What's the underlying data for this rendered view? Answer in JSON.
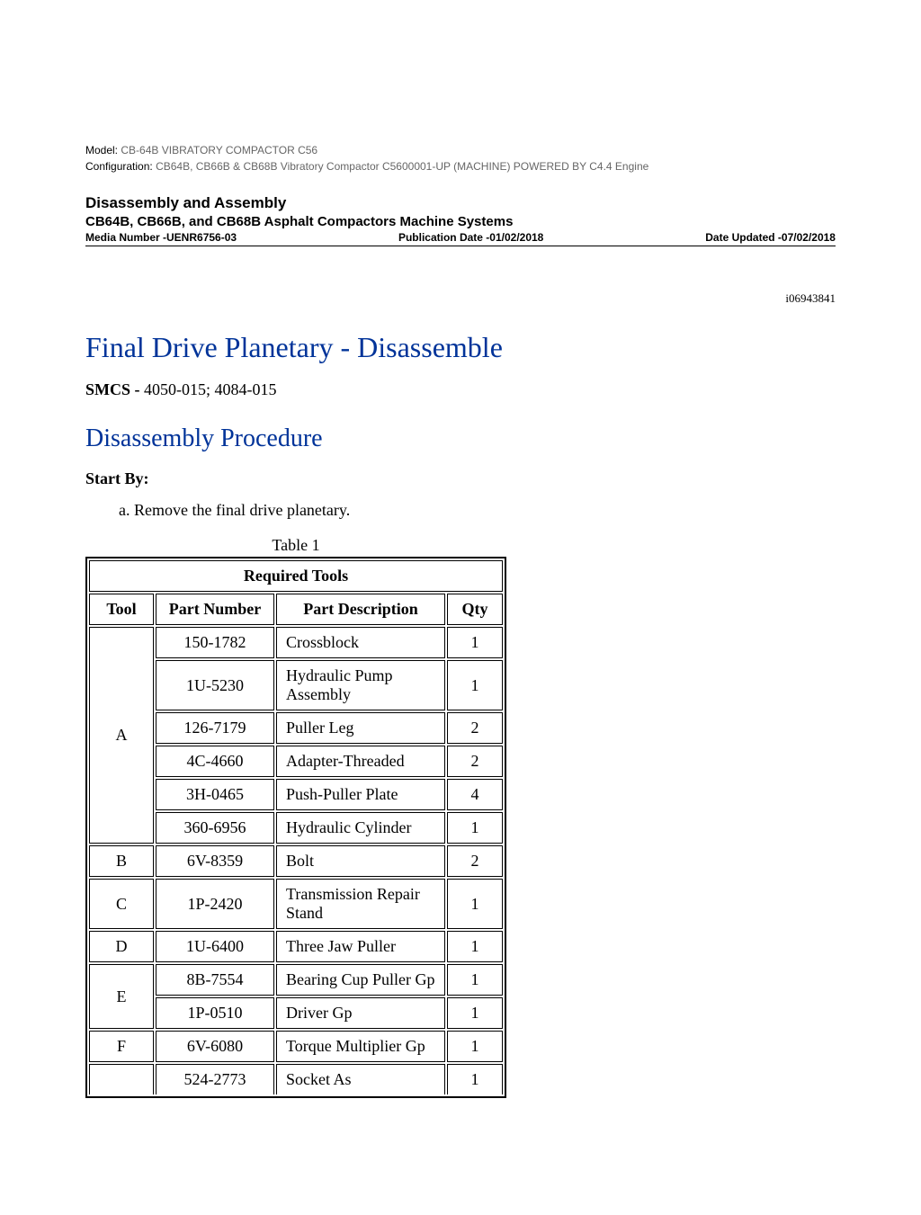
{
  "meta": {
    "model_label": "Model:",
    "model_value": "CB-64B VIBRATORY COMPACTOR C56",
    "config_label": "Configuration:",
    "config_value": "CB64B, CB66B & CB68B Vibratory Compactor C5600001-UP (MACHINE) POWERED BY C4.4 Engine"
  },
  "header": {
    "section_title": "Disassembly and Assembly",
    "section_subtitle": "CB64B, CB66B, and CB68B Asphalt Compactors Machine Systems",
    "media_number": "Media Number -UENR6756-03",
    "pub_date": "Publication Date -01/02/2018",
    "date_updated": "Date Updated -07/02/2018"
  },
  "doc_id": "i06943841",
  "title_main": "Final Drive Planetary - Disassemble",
  "smcs": {
    "label": "SMCS - ",
    "value": "4050-015; 4084-015"
  },
  "title_sub": "Disassembly Procedure",
  "start_by": {
    "label": "Start By:",
    "item": "Remove the final drive planetary."
  },
  "table": {
    "caption": "Table 1",
    "header_full": "Required Tools",
    "columns": [
      "Tool",
      "Part Number",
      "Part Description",
      "Qty"
    ],
    "rows": [
      {
        "tool": "A",
        "rowspan": 6,
        "pn": "150-1782",
        "desc": "Crossblock",
        "qty": "1"
      },
      {
        "tool": "",
        "rowspan": 0,
        "pn": "1U-5230",
        "desc": "Hydraulic Pump Assembly",
        "qty": "1"
      },
      {
        "tool": "",
        "rowspan": 0,
        "pn": "126-7179",
        "desc": "Puller Leg",
        "qty": "2"
      },
      {
        "tool": "",
        "rowspan": 0,
        "pn": "4C-4660",
        "desc": "Adapter-Threaded",
        "qty": "2"
      },
      {
        "tool": "",
        "rowspan": 0,
        "pn": "3H-0465",
        "desc": "Push-Puller Plate",
        "qty": "4"
      },
      {
        "tool": "",
        "rowspan": 0,
        "pn": "360-6956",
        "desc": "Hydraulic Cylinder",
        "qty": "1"
      },
      {
        "tool": "B",
        "rowspan": 1,
        "pn": "6V-8359",
        "desc": "Bolt",
        "qty": "2"
      },
      {
        "tool": "C",
        "rowspan": 1,
        "pn": "1P-2420",
        "desc": "Transmission Repair Stand",
        "qty": "1"
      },
      {
        "tool": "D",
        "rowspan": 1,
        "pn": "1U-6400",
        "desc": "Three Jaw Puller",
        "qty": "1"
      },
      {
        "tool": "E",
        "rowspan": 2,
        "pn": "8B-7554",
        "desc": "Bearing Cup Puller Gp",
        "qty": "1"
      },
      {
        "tool": "",
        "rowspan": 0,
        "pn": "1P-0510",
        "desc": "Driver Gp",
        "qty": "1"
      },
      {
        "tool": "F",
        "rowspan": 1,
        "pn": "6V-6080",
        "desc": "Torque Multiplier Gp",
        "qty": "1"
      },
      {
        "tool": "",
        "rowspan": 1,
        "pn": "524-2773",
        "desc": "Socket As",
        "qty": "1",
        "cutoff": true
      }
    ]
  }
}
